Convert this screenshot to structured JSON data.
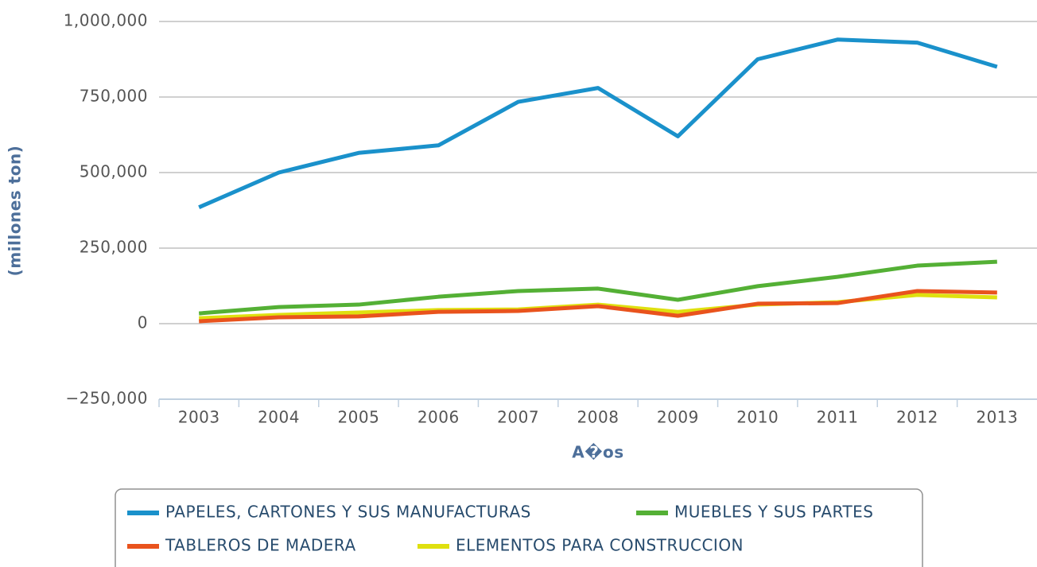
{
  "chart_data": {
    "type": "line",
    "x_label": "A�os",
    "y_label": "(millones ton)",
    "categories": [
      "2003",
      "2004",
      "2005",
      "2006",
      "2007",
      "2008",
      "2009",
      "2010",
      "2011",
      "2012",
      "2013"
    ],
    "series": [
      {
        "name": "PAPELES, CARTONES Y SUS MANUFACTURAS",
        "color": "#1a91cb",
        "values": [
          385000,
          500000,
          565000,
          590000,
          734000,
          780000,
          620000,
          875000,
          940000,
          930000,
          850000
        ]
      },
      {
        "name": "MUEBLES Y SUS PARTES",
        "color": "#54b035",
        "values": [
          34000,
          55000,
          63000,
          89000,
          108000,
          116000,
          79000,
          124000,
          155000,
          192000,
          205000
        ]
      },
      {
        "name": "TABLEROS DE MADERA",
        "color": "#e9531d",
        "values": [
          8000,
          21000,
          24000,
          39000,
          42000,
          58000,
          26000,
          66000,
          68000,
          108000,
          103000
        ]
      },
      {
        "name": "ELEMENTOS PARA CONSTRUCCION",
        "color": "#dfe00f",
        "values": [
          18000,
          29000,
          37000,
          45000,
          47000,
          63000,
          39000,
          63000,
          71000,
          95000,
          87000
        ]
      }
    ],
    "ylim": [
      -250000,
      1000000
    ],
    "yticks": [
      {
        "value": -250000,
        "label": "−250,000"
      },
      0,
      {
        "value": 250000,
        "label": "250,000"
      },
      {
        "value": 500000,
        "label": "500,000"
      },
      {
        "value": 750000,
        "label": "750,000"
      },
      {
        "value": 1000000,
        "label": "1,000,000"
      }
    ],
    "grid": true,
    "legend": "bottom"
  }
}
